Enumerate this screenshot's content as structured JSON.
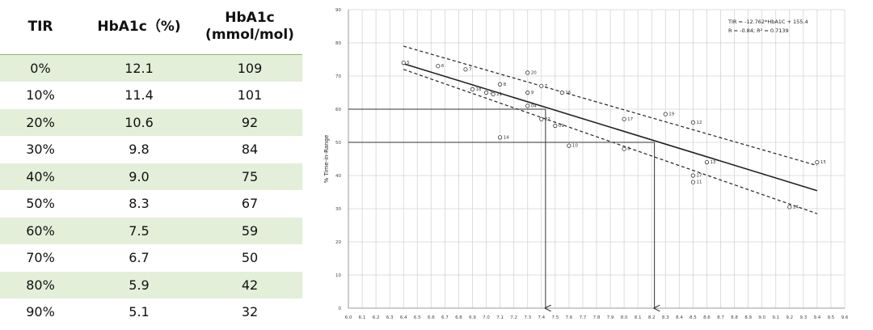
{
  "table": {
    "headers": [
      "TIR",
      "HbA1c（%)",
      "HbA1c",
      "(mmol/mol)"
    ],
    "rows": [
      [
        "0%",
        "12.1",
        "109"
      ],
      [
        "10%",
        "11.4",
        "101"
      ],
      [
        "20%",
        "10.6",
        "92"
      ],
      [
        "30%",
        "9.8",
        "84"
      ],
      [
        "40%",
        "9.0",
        "75"
      ],
      [
        "50%",
        "8.3",
        "67"
      ],
      [
        "60%",
        "7.5",
        "59"
      ],
      [
        "70%",
        "6.7",
        "50"
      ],
      [
        "80%",
        "5.9",
        "42"
      ],
      [
        "90%",
        "5.1",
        "32"
      ]
    ]
  },
  "colors": {
    "row_shade": "#e3efd9",
    "header_rule": "#86b86b",
    "gridline": "#d4d4d4",
    "ink": "#222222"
  },
  "chart_data": {
    "type": "scatter",
    "ylabel": "% Time-in-Range",
    "xlim": [
      6.0,
      9.6
    ],
    "ylim": [
      0,
      90
    ],
    "x_ticks": [
      "6.0",
      "6.1",
      "6.2",
      "6.3",
      "6.4",
      "6.5",
      "6.6",
      "6.7",
      "6.8",
      "6.9",
      "7.0",
      "7.1",
      "7.2",
      "7.3",
      "7.4",
      "7.5",
      "7.6",
      "7.7",
      "7.8",
      "7.9",
      "8.0",
      "8.1",
      "8.2",
      "8.3",
      "8.4",
      "8.5",
      "8.6",
      "8.7",
      "8.8",
      "8.9",
      "9.0",
      "9.1",
      "9.2",
      "9.3",
      "9.4",
      "9.5",
      "9.6"
    ],
    "y_ticks": [
      "0",
      "10",
      "20",
      "30",
      "40",
      "50",
      "60",
      "70",
      "80",
      "90"
    ],
    "grid": true,
    "annotation": [
      "TIR = -12.762*HbA1C + 155.4",
      "R = -0.84; R² = 0.7139"
    ],
    "regression": {
      "slope": -12.762,
      "intercept": 155.4,
      "x": [
        6.4,
        9.4
      ]
    },
    "confidence_band": {
      "upper": [
        [
          6.4,
          79
        ],
        [
          9.4,
          43
        ]
      ],
      "lower": [
        [
          6.4,
          72
        ],
        [
          9.4,
          28.5
        ]
      ]
    },
    "reference_lines": [
      {
        "y": 60,
        "x": 7.43
      },
      {
        "y": 50,
        "x": 8.22
      }
    ],
    "points": [
      {
        "label": "5",
        "x": 6.4,
        "y": 74
      },
      {
        "label": "6",
        "x": 6.65,
        "y": 73
      },
      {
        "label": "7",
        "x": 6.85,
        "y": 72
      },
      {
        "label": "8",
        "x": 7.1,
        "y": 67.5
      },
      {
        "label": "18",
        "x": 6.9,
        "y": 66
      },
      {
        "label": "3",
        "x": 7.0,
        "y": 65
      },
      {
        "label": "21",
        "x": 7.05,
        "y": 64.5
      },
      {
        "label": "20",
        "x": 7.3,
        "y": 71
      },
      {
        "label": "9",
        "x": 7.3,
        "y": 65
      },
      {
        "label": "7",
        "x": 7.4,
        "y": 67
      },
      {
        "label": "16",
        "x": 7.55,
        "y": 65
      },
      {
        "label": "04",
        "x": 7.3,
        "y": 61
      },
      {
        "label": "22",
        "x": 7.4,
        "y": 57
      },
      {
        "label": "09",
        "x": 7.5,
        "y": 55
      },
      {
        "label": "14",
        "x": 7.1,
        "y": 51.5
      },
      {
        "label": "10",
        "x": 7.6,
        "y": 49
      },
      {
        "label": "17",
        "x": 8.0,
        "y": 57
      },
      {
        "label": "19",
        "x": 8.3,
        "y": 58.5
      },
      {
        "label": "8",
        "x": 8.0,
        "y": 48
      },
      {
        "label": "12",
        "x": 8.5,
        "y": 56
      },
      {
        "label": "13",
        "x": 8.6,
        "y": 44
      },
      {
        "label": "17",
        "x": 8.5,
        "y": 40
      },
      {
        "label": "11",
        "x": 8.5,
        "y": 38
      },
      {
        "label": "14",
        "x": 9.2,
        "y": 30.5
      },
      {
        "label": "15",
        "x": 9.4,
        "y": 44
      }
    ]
  }
}
